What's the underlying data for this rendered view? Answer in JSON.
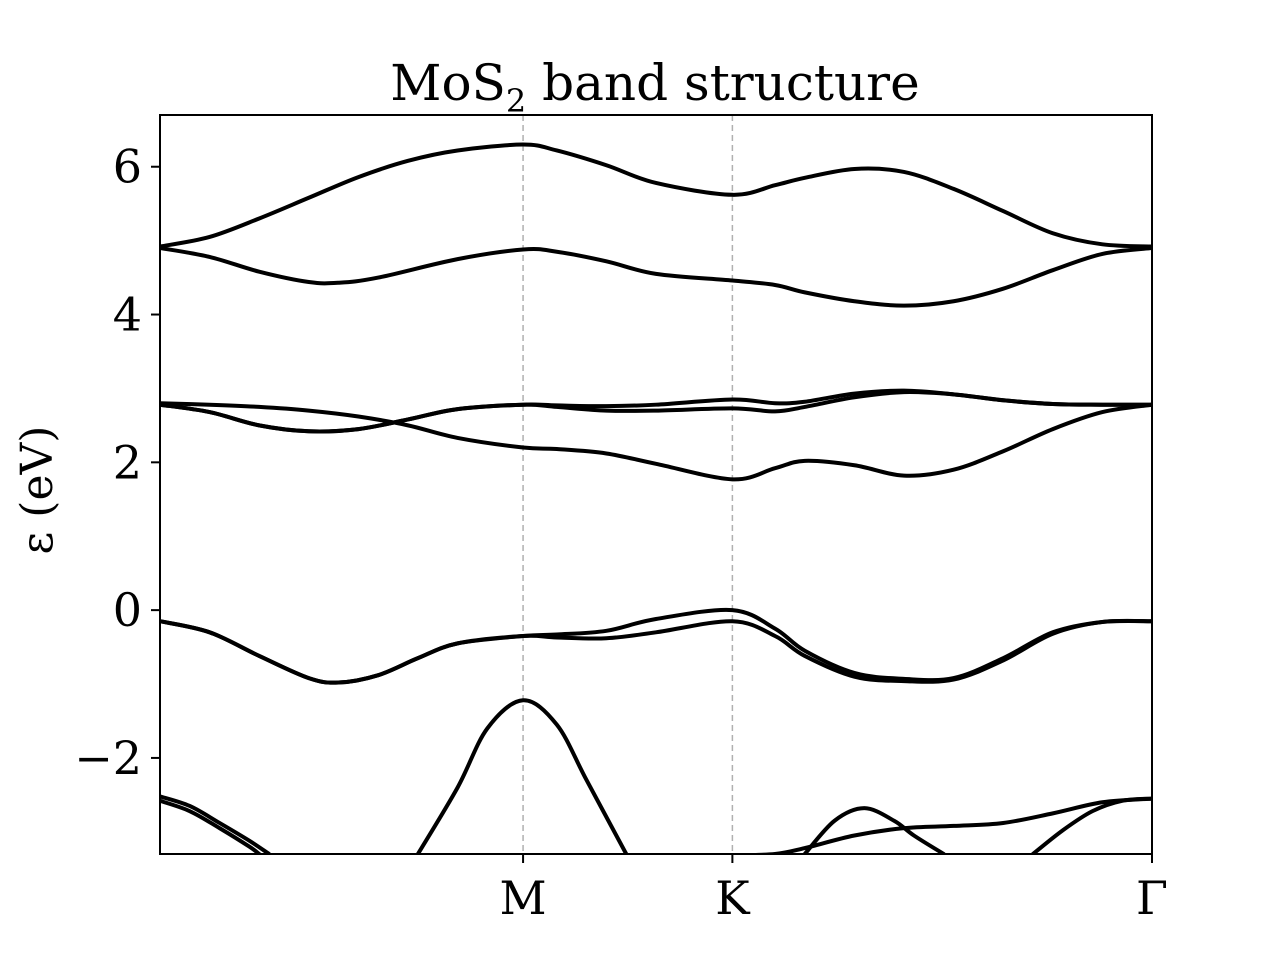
{
  "chart_data": {
    "type": "line",
    "title_main": "MoS",
    "title_sub": "2",
    "title_rest": " band structure",
    "xlabel": "",
    "ylabel": "ε (eV)",
    "ylim": [
      -3.3,
      6.7
    ],
    "xlim": [
      0,
      1
    ],
    "yticks": [
      {
        "value": -2,
        "label": "−2"
      },
      {
        "value": 0,
        "label": "0"
      },
      {
        "value": 2,
        "label": "2"
      },
      {
        "value": 4,
        "label": "4"
      },
      {
        "value": 6,
        "label": "6"
      }
    ],
    "xticks": [
      {
        "value": 0.366,
        "label": "M"
      },
      {
        "value": 0.577,
        "label": "K"
      },
      {
        "value": 1.0,
        "label": "Γ"
      }
    ],
    "vlines": [
      0.366,
      0.577
    ],
    "grid": false,
    "line_color": "#000000",
    "vline_color": "#b0b0b0",
    "series": [
      {
        "x": [
          0,
          0.05,
          0.1,
          0.15,
          0.2,
          0.25,
          0.3,
          0.366,
          0.4,
          0.45,
          0.5,
          0.577,
          0.62,
          0.65,
          0.7,
          0.75,
          0.8,
          0.85,
          0.9,
          0.95,
          1.0
        ],
        "y": [
          4.92,
          5.05,
          5.3,
          5.58,
          5.86,
          6.08,
          6.22,
          6.3,
          6.22,
          6.02,
          5.78,
          5.62,
          5.75,
          5.85,
          5.97,
          5.93,
          5.7,
          5.4,
          5.1,
          4.95,
          4.92
        ]
      },
      {
        "x": [
          0,
          0.05,
          0.1,
          0.15,
          0.18,
          0.22,
          0.3,
          0.366,
          0.4,
          0.45,
          0.5,
          0.577,
          0.62,
          0.65,
          0.7,
          0.75,
          0.8,
          0.85,
          0.9,
          0.95,
          1.0
        ],
        "y": [
          4.9,
          4.78,
          4.58,
          4.44,
          4.43,
          4.5,
          4.75,
          4.88,
          4.85,
          4.72,
          4.55,
          4.46,
          4.4,
          4.3,
          4.18,
          4.12,
          4.18,
          4.35,
          4.6,
          4.82,
          4.9
        ]
      },
      {
        "x": [
          0,
          0.05,
          0.1,
          0.15,
          0.2,
          0.25,
          0.3,
          0.366,
          0.4,
          0.45,
          0.5,
          0.577,
          0.62,
          0.65,
          0.7,
          0.75,
          0.8,
          0.85,
          0.9,
          0.95,
          1.0
        ],
        "y": [
          2.8,
          2.78,
          2.75,
          2.7,
          2.62,
          2.5,
          2.33,
          2.2,
          2.18,
          2.12,
          1.98,
          1.77,
          1.92,
          2.02,
          1.96,
          1.82,
          1.9,
          2.15,
          2.45,
          2.68,
          2.78
        ]
      },
      {
        "x": [
          0,
          0.05,
          0.1,
          0.15,
          0.2,
          0.25,
          0.3,
          0.366,
          0.4,
          0.45,
          0.5,
          0.577,
          0.62,
          0.65,
          0.7,
          0.75,
          0.8,
          0.85,
          0.9,
          0.95,
          1.0
        ],
        "y": [
          2.78,
          2.68,
          2.5,
          2.42,
          2.45,
          2.58,
          2.72,
          2.78,
          2.77,
          2.76,
          2.78,
          2.85,
          2.8,
          2.82,
          2.93,
          2.97,
          2.92,
          2.84,
          2.79,
          2.78,
          2.78
        ]
      },
      {
        "x": [
          0,
          0.05,
          0.1,
          0.15,
          0.2,
          0.25,
          0.3,
          0.366,
          0.4,
          0.45,
          0.5,
          0.577,
          0.62,
          0.65,
          0.7,
          0.75,
          0.8,
          0.85,
          0.9,
          0.95,
          1.0
        ],
        "y": [
          2.78,
          2.68,
          2.5,
          2.42,
          2.45,
          2.58,
          2.72,
          2.78,
          2.75,
          2.7,
          2.7,
          2.73,
          2.69,
          2.75,
          2.88,
          2.95,
          2.92,
          2.84,
          2.79,
          2.78,
          2.78
        ]
      },
      {
        "x": [
          0,
          0.05,
          0.1,
          0.15,
          0.18,
          0.22,
          0.26,
          0.3,
          0.366,
          0.4,
          0.45,
          0.5,
          0.577,
          0.62,
          0.65,
          0.7,
          0.75,
          0.8,
          0.85,
          0.9,
          0.95,
          1.0
        ],
        "y": [
          -0.15,
          -0.3,
          -0.62,
          -0.92,
          -0.98,
          -0.88,
          -0.65,
          -0.45,
          -0.35,
          -0.33,
          -0.28,
          -0.12,
          0.0,
          -0.25,
          -0.55,
          -0.85,
          -0.93,
          -0.92,
          -0.65,
          -0.3,
          -0.16,
          -0.15
        ]
      },
      {
        "x": [
          0,
          0.05,
          0.1,
          0.15,
          0.18,
          0.22,
          0.26,
          0.3,
          0.366,
          0.4,
          0.45,
          0.5,
          0.577,
          0.62,
          0.65,
          0.7,
          0.75,
          0.8,
          0.85,
          0.9,
          0.95,
          1.0
        ],
        "y": [
          -0.15,
          -0.3,
          -0.62,
          -0.92,
          -0.98,
          -0.88,
          -0.65,
          -0.45,
          -0.35,
          -0.37,
          -0.38,
          -0.3,
          -0.15,
          -0.35,
          -0.62,
          -0.9,
          -0.96,
          -0.94,
          -0.68,
          -0.32,
          -0.16,
          -0.15
        ]
      },
      {
        "x": [
          0.26,
          0.3,
          0.33,
          0.366,
          0.4,
          0.43,
          0.47
        ],
        "y": [
          -3.3,
          -2.4,
          -1.6,
          -1.22,
          -1.55,
          -2.3,
          -3.3
        ]
      },
      {
        "x": [
          0,
          0.03,
          0.06,
          0.09,
          0.11
        ],
        "y": [
          -2.52,
          -2.65,
          -2.88,
          -3.12,
          -3.3
        ]
      },
      {
        "x": [
          0,
          0.03,
          0.06,
          0.09,
          0.1
        ],
        "y": [
          -2.58,
          -2.72,
          -2.95,
          -3.2,
          -3.3
        ]
      },
      {
        "x": [
          0.577,
          0.62,
          0.65,
          0.7,
          0.75,
          0.8,
          0.85,
          0.9,
          0.95,
          1.0
        ],
        "y": [
          -3.32,
          -3.3,
          -3.22,
          -3.05,
          -2.95,
          -2.92,
          -2.88,
          -2.75,
          -2.6,
          -2.55
        ]
      },
      {
        "x": [
          0.65,
          0.68,
          0.71,
          0.74,
          0.76,
          0.79
        ],
        "y": [
          -3.3,
          -2.85,
          -2.68,
          -2.85,
          -3.05,
          -3.3
        ]
      },
      {
        "x": [
          0.88,
          0.91,
          0.94,
          0.97,
          1.0
        ],
        "y": [
          -3.3,
          -2.98,
          -2.72,
          -2.58,
          -2.55
        ]
      }
    ]
  }
}
